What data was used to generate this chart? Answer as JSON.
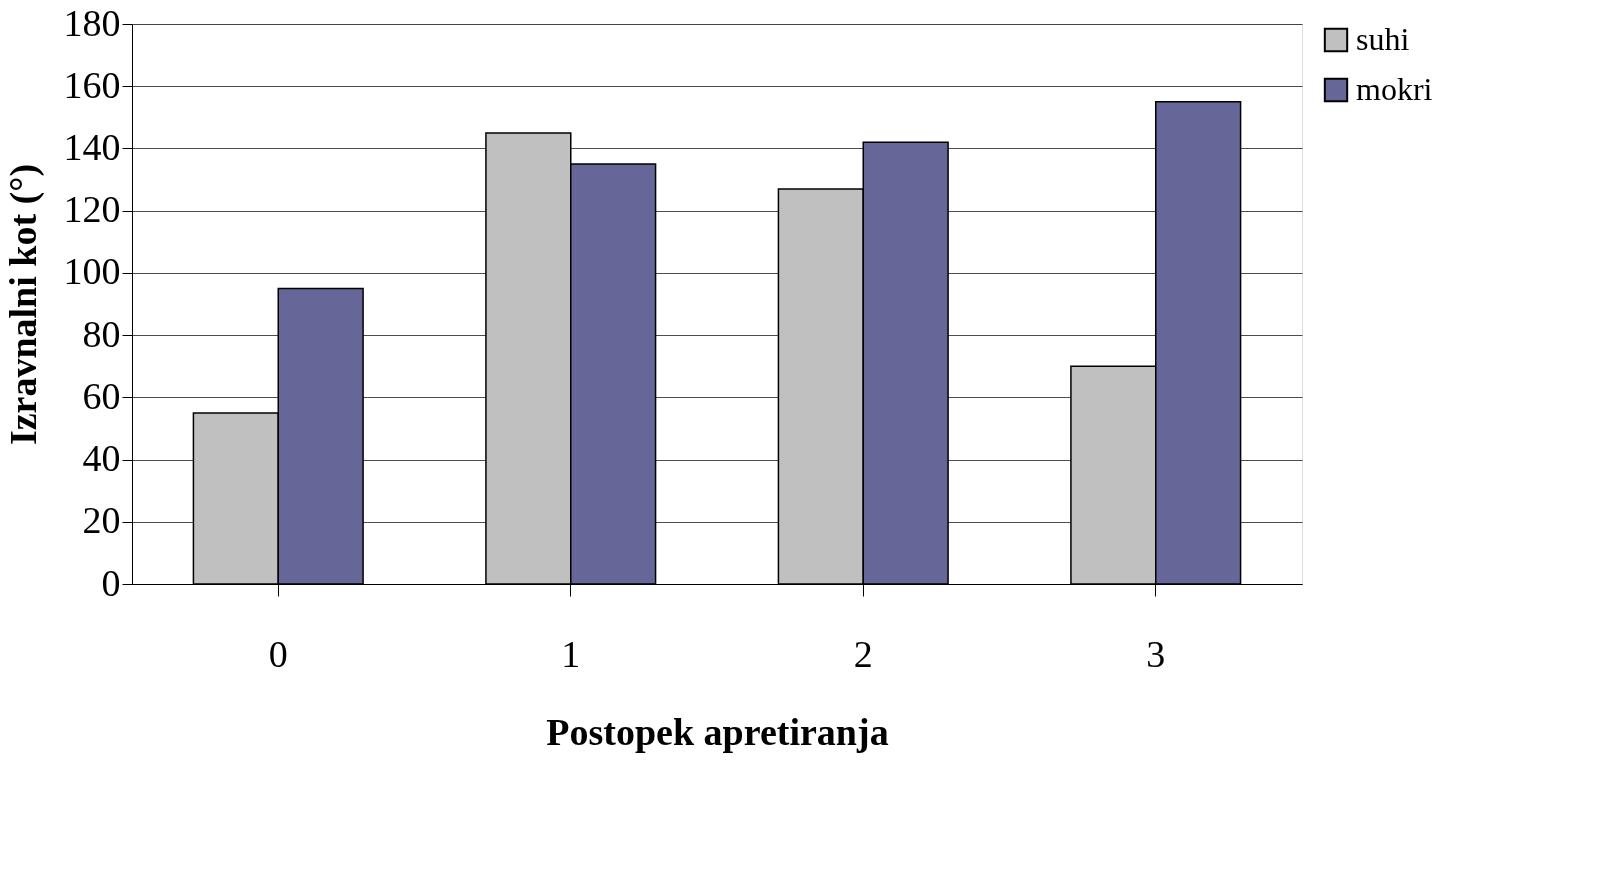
{
  "chart_data": {
    "type": "bar",
    "xlabel": "Postopek apretiranja",
    "ylabel": "Izravnalni kot (°)",
    "categories": [
      "0",
      "1",
      "2",
      "3"
    ],
    "series": [
      {
        "name": "suhi",
        "color": "#c0c0c0",
        "values": [
          55,
          145,
          127,
          70
        ]
      },
      {
        "name": "mokri",
        "color": "#666699",
        "values": [
          95,
          135,
          142,
          155
        ]
      }
    ],
    "ylim": [
      0,
      180
    ],
    "yticks": [
      0,
      20,
      40,
      60,
      80,
      100,
      120,
      140,
      160,
      180
    ],
    "grid": "y",
    "legend": "right"
  }
}
